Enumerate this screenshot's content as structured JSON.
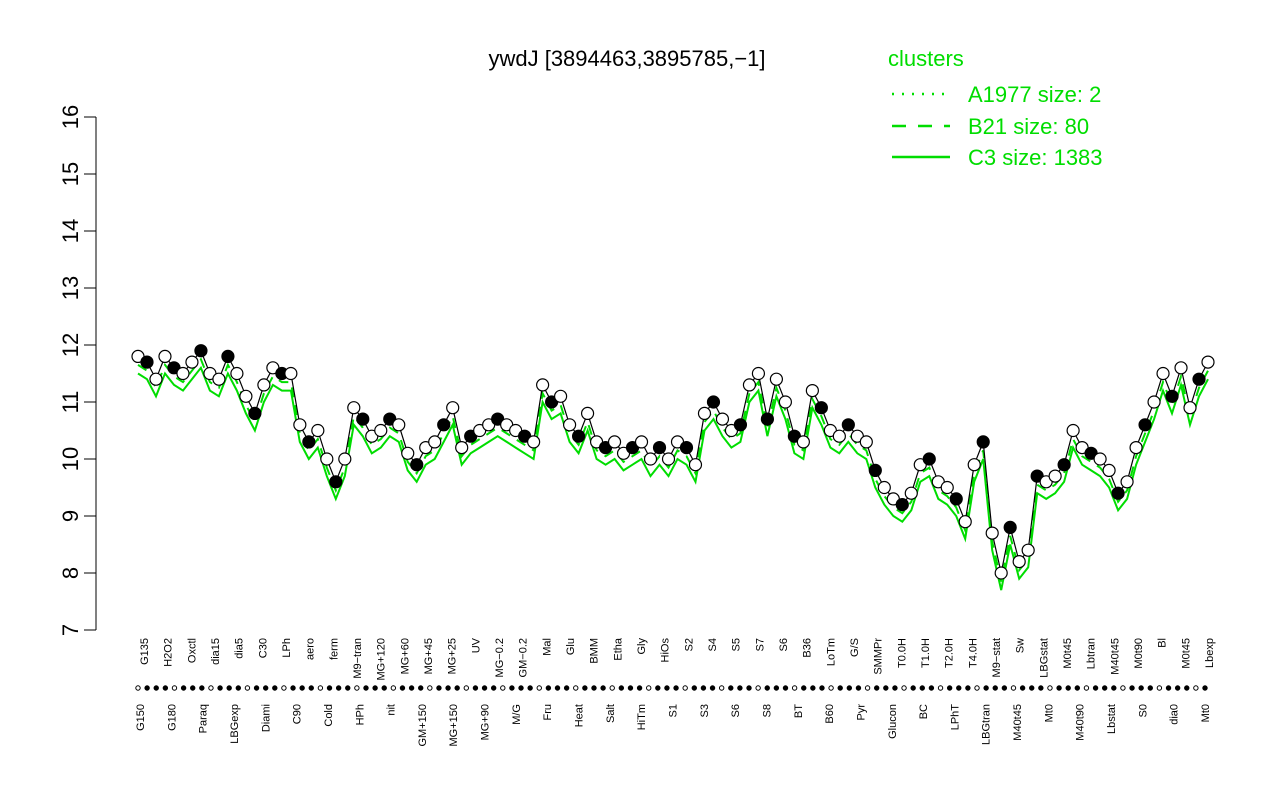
{
  "chart_data": {
    "type": "line",
    "title": "ywdJ [3894463,3895785,−1]",
    "xlabel": "",
    "ylabel": "",
    "ylim": [
      7,
      16
    ],
    "y_ticks": [
      "7",
      "8",
      "9",
      "10",
      "11",
      "12",
      "13",
      "14",
      "15",
      "16"
    ],
    "legend": {
      "title": "clusters",
      "placement": "top-right",
      "color": "#00dd00",
      "entries": [
        {
          "label": "A1977 size: 2",
          "style": "dotted"
        },
        {
          "label": "B21 size: 80",
          "style": "dashed"
        },
        {
          "label": "C3 size: 1383",
          "style": "solid"
        }
      ]
    },
    "x_tick_labels_upper": [
      "G135",
      "H2O2",
      "Oxctl",
      "dia15",
      "dia5",
      "C30",
      "LPh",
      "aero",
      "ferm",
      "M9−tran",
      "MG+120",
      "MG+60",
      "MG+45",
      "MG+25",
      "UV",
      "MG−0.2",
      "GM−0.2",
      "Mal",
      "Glu",
      "BMM",
      "Etha",
      "Gly",
      "HiOs",
      "S2",
      "S4",
      "S5",
      "S7",
      "S6",
      "B36",
      "LoTm",
      "G/S",
      "SMMPr",
      "T0.0H",
      "T1.0H",
      "T2.0H",
      "T4.0H",
      "M9−stat",
      "Sw",
      "LBGstat",
      "M0t45",
      "Lbtran",
      "M40t45",
      "M0t90",
      "Bl",
      "M0t45",
      "Lbexp"
    ],
    "x_tick_labels_lower": [
      "G150",
      "G180",
      "Paraq",
      "LBGexp",
      "Diami",
      "C90",
      "Cold",
      "HPh",
      "nit",
      "GM+150",
      "MG+150",
      "MG+90",
      "M/G",
      "Fru",
      "Heat",
      "Salt",
      "HiTm",
      "S1",
      "S3",
      "S6",
      "S8",
      "BT",
      "B60",
      "Pyr",
      "Glucon",
      "BC",
      "LPhT",
      "LBGtran",
      "M40t45",
      "Mt0",
      "M40t90",
      "Lbstat",
      "S0",
      "dia0",
      "Mt0"
    ],
    "series": [
      {
        "style": "points",
        "x": [
          1,
          2,
          3,
          4,
          5,
          6,
          7,
          8,
          9,
          10,
          11,
          12,
          13,
          14,
          15,
          16,
          17,
          18,
          19,
          20,
          21,
          22,
          23,
          24,
          25,
          26,
          27,
          28,
          29,
          30,
          31,
          32,
          33,
          34,
          35,
          36,
          37,
          38,
          39,
          40,
          41,
          42,
          43,
          44,
          45,
          46,
          47,
          48,
          49,
          50,
          51,
          52,
          53,
          54,
          55,
          56,
          57,
          58,
          59,
          60,
          61,
          62,
          63,
          64,
          65,
          66,
          67,
          68,
          69,
          70,
          71,
          72,
          73,
          74,
          75,
          76,
          77,
          78,
          79,
          80,
          81,
          82,
          83,
          84,
          85,
          86,
          87,
          88,
          89,
          90,
          91,
          92,
          93,
          94,
          95,
          96,
          97,
          98,
          99,
          100,
          101,
          102,
          103,
          104,
          105,
          106,
          107,
          108,
          109,
          110,
          111,
          112,
          113,
          114,
          115,
          116,
          117,
          118,
          119,
          120
        ],
        "values": [
          11.8,
          11.7,
          11.4,
          11.8,
          11.6,
          11.5,
          11.7,
          11.9,
          11.5,
          11.4,
          11.8,
          11.5,
          11.1,
          10.8,
          11.3,
          11.6,
          11.5,
          11.5,
          10.6,
          10.3,
          10.5,
          10.0,
          9.6,
          10.0,
          10.9,
          10.7,
          10.4,
          10.5,
          10.7,
          10.6,
          10.1,
          9.9,
          10.2,
          10.3,
          10.6,
          10.9,
          10.2,
          10.4,
          10.5,
          10.6,
          10.7,
          10.6,
          10.5,
          10.4,
          10.3,
          11.3,
          11.0,
          11.1,
          10.6,
          10.4,
          10.8,
          10.3,
          10.2,
          10.3,
          10.1,
          10.2,
          10.3,
          10.0,
          10.2,
          10.0,
          10.3,
          10.2,
          9.9,
          10.8,
          11.0,
          10.7,
          10.5,
          10.6,
          11.3,
          11.5,
          10.7,
          11.4,
          11.0,
          10.4,
          10.3,
          11.2,
          10.9,
          10.5,
          10.4,
          10.6,
          10.4,
          10.3,
          9.8,
          9.5,
          9.3,
          9.2,
          9.4,
          9.9,
          10.0,
          9.6,
          9.5,
          9.3,
          8.9,
          9.9,
          10.3,
          8.7,
          8.0,
          8.8,
          8.2,
          8.4,
          9.7,
          9.6,
          9.7,
          9.9,
          10.5,
          10.2,
          10.1,
          10.0,
          9.8,
          9.4,
          9.6,
          10.2,
          10.6,
          11.0,
          11.5,
          11.1,
          11.6,
          10.9,
          11.4,
          11.7
        ]
      }
    ]
  }
}
